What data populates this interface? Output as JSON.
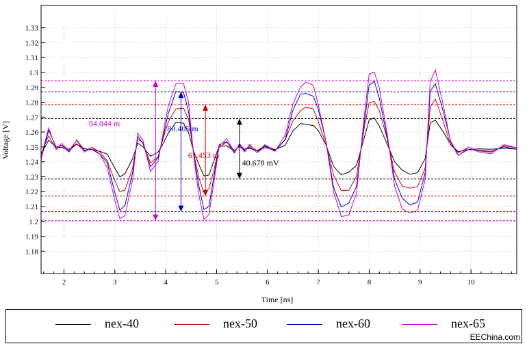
{
  "chart_data": {
    "type": "line",
    "xlabel": "Time [ns]",
    "ylabel": "Voltage [V]",
    "xlim": [
      1.55,
      10.9
    ],
    "ylim": [
      1.165,
      1.345
    ],
    "x_ticks": [
      "2",
      "3",
      "4",
      "5",
      "6",
      "7",
      "8",
      "9",
      "10"
    ],
    "y_ticks": [
      "1.18",
      "1.19",
      "1.2",
      "1.21",
      "1.22",
      "1.23",
      "1.24",
      "1.25",
      "1.26",
      "1.27",
      "1.28",
      "1.29",
      "1.3",
      "1.31",
      "1.32",
      "1.33"
    ],
    "grid": true,
    "legend_position": "bottom",
    "series": [
      {
        "name": "nex-40",
        "color": "#000000",
        "amplitude": 0.38,
        "ref_high": 1.269,
        "ref_low": 1.2285
      },
      {
        "name": "nex-50",
        "color": "#cc0000",
        "amplitude": 0.62,
        "ref_high": 1.2785,
        "ref_low": 1.217
      },
      {
        "name": "nex-60",
        "color": "#0000cc",
        "amplitude": 0.85,
        "ref_high": 1.287,
        "ref_low": 1.2065
      },
      {
        "name": "nex-65",
        "color": "#cc00cc",
        "amplitude": 1.0,
        "ref_high": 1.2945,
        "ref_low": 1.2005
      }
    ],
    "waveform_x": [
      1.55,
      1.6,
      1.7,
      1.85,
      1.95,
      2.1,
      2.25,
      2.4,
      2.55,
      2.7,
      2.85,
      3.0,
      3.1,
      3.2,
      3.35,
      3.45,
      3.55,
      3.7,
      3.85,
      3.95,
      4.05,
      4.2,
      4.35,
      4.45,
      4.55,
      4.65,
      4.75,
      4.85,
      4.95,
      5.05,
      5.2,
      5.35,
      5.45,
      5.55,
      5.65,
      5.8,
      5.95,
      6.15,
      6.35,
      6.5,
      6.65,
      6.75,
      6.9,
      7.0,
      7.15,
      7.3,
      7.45,
      7.6,
      7.75,
      7.9,
      8.0,
      8.1,
      8.2,
      8.35,
      8.5,
      8.65,
      8.8,
      8.95,
      9.1,
      9.2,
      9.3,
      9.45,
      9.6,
      9.75,
      9.95,
      10.15,
      10.4,
      10.65,
      10.9
    ],
    "waveform_dev": [
      -8,
      0,
      14,
      0,
      3,
      -2,
      6,
      -2,
      0,
      -4,
      -12,
      -35,
      -48,
      -45,
      -20,
      10,
      5,
      -15,
      -8,
      10,
      28,
      44,
      44,
      30,
      -5,
      -30,
      -48,
      -45,
      -22,
      2,
      6,
      -3,
      3,
      -2,
      2,
      -3,
      2,
      -2,
      8,
      30,
      42,
      44,
      42,
      30,
      5,
      -30,
      -46,
      -44,
      -30,
      20,
      50,
      52,
      40,
      10,
      -25,
      -40,
      -44,
      -42,
      -20,
      45,
      52,
      30,
      5,
      -5,
      0,
      -2,
      -3,
      2,
      0
    ],
    "annotations": [
      {
        "text": "94.044 m",
        "color": "#cc00cc"
      },
      {
        "text": "80.405 m",
        "color": "#0000cc"
      },
      {
        "text": "61.453 m",
        "color": "#cc0000"
      },
      {
        "text": "40.678 mV",
        "color": "#000000"
      }
    ]
  },
  "watermark": "EEChina.com"
}
